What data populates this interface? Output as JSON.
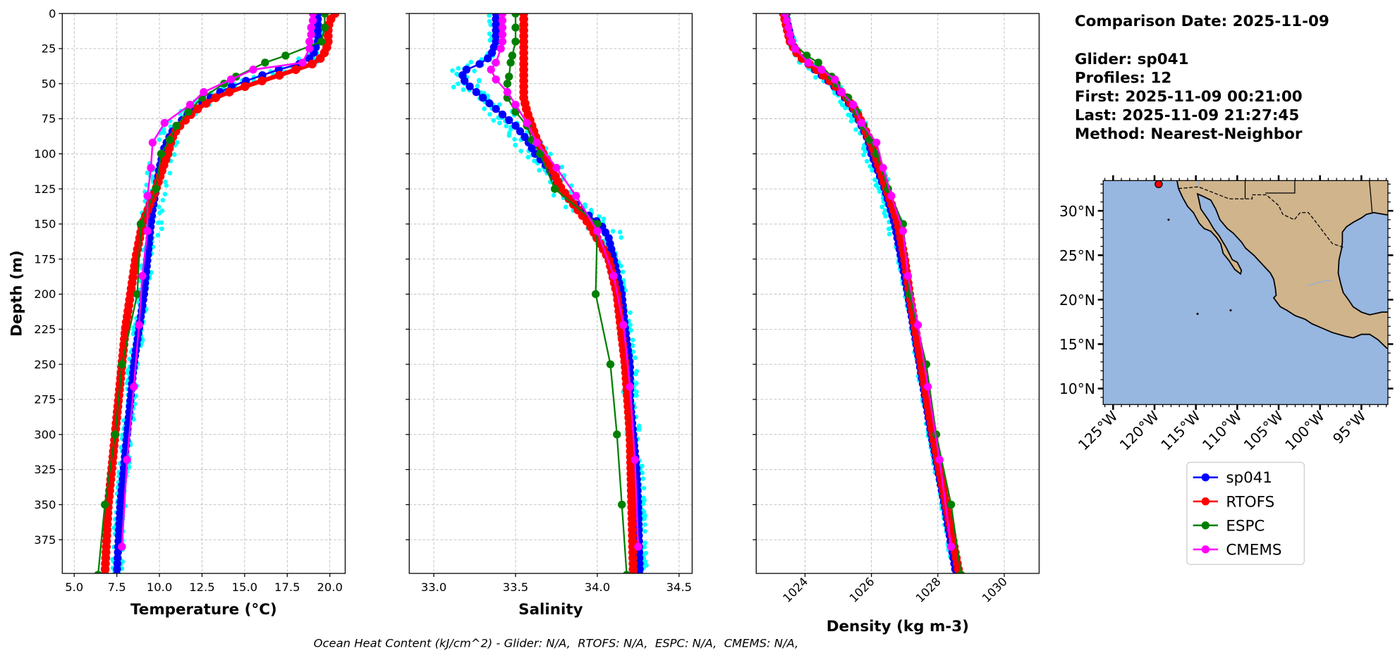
{
  "info": {
    "comparison_date": "Comparison Date: 2025-11-09",
    "glider": "Glider: sp041",
    "profiles": "Profiles: 12",
    "first": "First: 2025-11-09 00:21:00",
    "last": "Last: 2025-11-09 21:27:45",
    "method": "Method: Nearest-Neighbor"
  },
  "footer": "Ocean Heat Content (kJ/cm^2) - Glider: N/A,  RTOFS: N/A,  ESPC: N/A,  CMEMS: N/A,",
  "colors": {
    "sp041": "#0000ff",
    "RTOFS": "#ff0000",
    "ESPC": "#008000",
    "CMEMS": "#ff00ff",
    "profiles": "#00ffff",
    "land": "#d0b48c",
    "ocean": "#97b6e0"
  },
  "chart_data": [
    {
      "type": "line",
      "id": "temperature",
      "xlabel": "Temperature (°C)",
      "ylabel": "Depth (m)",
      "xlim": [
        4.3,
        20.9
      ],
      "ylim": [
        399,
        0
      ],
      "xticks": [
        "5.0",
        "7.5",
        "10.0",
        "12.5",
        "15.0",
        "17.5",
        "20.0"
      ],
      "yticks": [
        "0",
        "25",
        "50",
        "75",
        "100",
        "125",
        "150",
        "175",
        "200",
        "225",
        "250",
        "275",
        "300",
        "325",
        "350",
        "375"
      ],
      "grid": true,
      "profile_spread": 0.45,
      "series": [
        {
          "name": "sp041",
          "depth": [
            0,
            10,
            20,
            30,
            35,
            40,
            45,
            50,
            55,
            60,
            65,
            70,
            75,
            80,
            85,
            90,
            95,
            100,
            110,
            125,
            140,
            150,
            175,
            200,
            225,
            250,
            275,
            300,
            325,
            350,
            375,
            400
          ],
          "values": [
            19.3,
            19.3,
            19.3,
            19.0,
            18.5,
            17.0,
            15.8,
            14.6,
            13.7,
            13.0,
            12.4,
            11.8,
            11.4,
            11.0,
            10.7,
            10.5,
            10.3,
            10.2,
            10.0,
            9.8,
            9.6,
            9.5,
            9.3,
            9.1,
            8.8,
            8.5,
            8.3,
            8.1,
            7.9,
            7.7,
            7.6,
            7.5
          ]
        },
        {
          "name": "RTOFS",
          "depth": [
            0,
            5,
            10,
            15,
            20,
            25,
            30,
            35,
            40,
            45,
            50,
            55,
            60,
            65,
            70,
            75,
            80,
            85,
            90,
            100,
            110,
            125,
            150,
            175,
            200,
            225,
            250,
            275,
            300,
            325,
            350,
            375,
            400
          ],
          "values": [
            20.3,
            20.0,
            19.9,
            19.9,
            19.9,
            19.8,
            19.6,
            19.2,
            18.0,
            16.8,
            15.5,
            14.3,
            13.3,
            12.6,
            12.0,
            11.6,
            11.2,
            10.9,
            10.7,
            10.5,
            10.2,
            9.8,
            9.0,
            8.6,
            8.3,
            8.0,
            7.8,
            7.6,
            7.4,
            7.2,
            7.0,
            6.9,
            6.8
          ]
        },
        {
          "name": "ESPC",
          "depth": [
            0,
            10,
            20,
            30,
            35,
            45,
            50,
            60,
            70,
            80,
            90,
            100,
            125,
            150,
            200,
            250,
            300,
            350,
            400
          ],
          "values": [
            19.7,
            19.7,
            19.5,
            17.4,
            16.2,
            14.5,
            13.8,
            12.5,
            11.7,
            11.0,
            10.6,
            10.1,
            9.8,
            8.9,
            8.7,
            7.8,
            7.4,
            6.8,
            6.4
          ]
        },
        {
          "name": "CMEMS",
          "depth": [
            0,
            5,
            10,
            15,
            20,
            25,
            35,
            40,
            47,
            56,
            65,
            78,
            92,
            110,
            130,
            155,
            187,
            222,
            266,
            318,
            380
          ],
          "values": [
            19.0,
            19.0,
            18.9,
            18.9,
            18.8,
            18.8,
            18.4,
            15.5,
            14.2,
            12.6,
            11.8,
            10.3,
            9.6,
            9.5,
            9.3,
            9.3,
            9.0,
            8.8,
            8.5,
            8.1,
            7.8
          ]
        }
      ]
    },
    {
      "type": "line",
      "id": "salinity",
      "xlabel": "Salinity",
      "xlim": [
        32.85,
        34.58
      ],
      "ylim": [
        399,
        0
      ],
      "xticks": [
        "33.0",
        "33.5",
        "34.0",
        "34.5"
      ],
      "grid": true,
      "profile_spread": 0.06,
      "series": [
        {
          "name": "sp041",
          "depth": [
            0,
            20,
            30,
            35,
            40,
            45,
            50,
            55,
            60,
            65,
            70,
            75,
            80,
            90,
            100,
            110,
            125,
            140,
            150,
            160,
            175,
            200,
            225,
            250,
            275,
            300,
            325,
            350,
            400
          ],
          "values": [
            33.38,
            33.38,
            33.35,
            33.3,
            33.2,
            33.17,
            33.2,
            33.25,
            33.3,
            33.35,
            33.4,
            33.45,
            33.5,
            33.57,
            33.62,
            33.7,
            33.78,
            33.9,
            34.02,
            34.07,
            34.1,
            34.15,
            34.17,
            34.2,
            34.2,
            34.22,
            34.24,
            34.25,
            34.26
          ]
        },
        {
          "name": "RTOFS",
          "depth": [
            0,
            10,
            20,
            30,
            40,
            50,
            60,
            70,
            80,
            90,
            100,
            110,
            125,
            150,
            175,
            200,
            250,
            300,
            350,
            400
          ],
          "values": [
            33.55,
            33.55,
            33.55,
            33.55,
            33.55,
            33.55,
            33.55,
            33.57,
            33.6,
            33.63,
            33.67,
            33.72,
            33.78,
            33.95,
            34.07,
            34.12,
            34.17,
            34.2,
            34.21,
            34.22
          ]
        },
        {
          "name": "ESPC",
          "depth": [
            0,
            10,
            20,
            30,
            35,
            45,
            50,
            60,
            70,
            80,
            90,
            100,
            125,
            150,
            200,
            250,
            300,
            350,
            400
          ],
          "values": [
            33.5,
            33.5,
            33.5,
            33.48,
            33.47,
            33.46,
            33.45,
            33.45,
            33.5,
            33.57,
            33.6,
            33.65,
            33.74,
            34.0,
            33.99,
            34.08,
            34.12,
            34.15,
            34.18
          ]
        },
        {
          "name": "CMEMS",
          "depth": [
            0,
            5,
            10,
            15,
            20,
            25,
            35,
            40,
            47,
            56,
            65,
            78,
            92,
            110,
            130,
            155,
            187,
            222,
            266,
            318,
            380
          ],
          "values": [
            33.42,
            33.42,
            33.42,
            33.42,
            33.42,
            33.41,
            33.38,
            33.35,
            33.38,
            33.45,
            33.5,
            33.57,
            33.63,
            33.75,
            33.87,
            34.0,
            34.1,
            34.16,
            34.2,
            34.23,
            34.25
          ]
        }
      ]
    },
    {
      "type": "line",
      "id": "density",
      "xlabel": "Density (kg m-3)",
      "xlim": [
        1022.53,
        1031.05
      ],
      "ylim": [
        399,
        0
      ],
      "xticks": [
        "1024",
        "1026",
        "1028",
        "1030"
      ],
      "grid": true,
      "profile_spread": 0.15,
      "series": [
        {
          "name": "sp041",
          "depth": [
            0,
            20,
            30,
            40,
            50,
            60,
            70,
            80,
            90,
            100,
            125,
            150,
            175,
            200,
            250,
            300,
            350,
            400
          ],
          "values": [
            1023.4,
            1023.6,
            1023.8,
            1024.3,
            1024.8,
            1025.2,
            1025.5,
            1025.7,
            1025.9,
            1026.0,
            1026.4,
            1026.7,
            1026.9,
            1027.1,
            1027.45,
            1027.8,
            1028.2,
            1028.55
          ]
        },
        {
          "name": "RTOFS",
          "depth": [
            0,
            20,
            30,
            40,
            50,
            60,
            70,
            80,
            90,
            100,
            125,
            150,
            175,
            200,
            250,
            300,
            350,
            400
          ],
          "values": [
            1023.35,
            1023.55,
            1023.8,
            1024.35,
            1024.85,
            1025.25,
            1025.55,
            1025.75,
            1025.95,
            1026.1,
            1026.45,
            1026.8,
            1027.0,
            1027.15,
            1027.5,
            1027.85,
            1028.25,
            1028.65
          ]
        },
        {
          "name": "ESPC",
          "depth": [
            0,
            10,
            20,
            30,
            35,
            45,
            50,
            60,
            70,
            80,
            90,
            100,
            125,
            150,
            200,
            250,
            300,
            350,
            400
          ],
          "values": [
            1023.45,
            1023.5,
            1023.6,
            1024.05,
            1024.4,
            1024.8,
            1024.95,
            1025.3,
            1025.55,
            1025.75,
            1025.95,
            1026.15,
            1026.5,
            1026.95,
            1027.15,
            1027.65,
            1027.95,
            1028.4,
            1028.7
          ]
        },
        {
          "name": "CMEMS",
          "depth": [
            0,
            5,
            10,
            15,
            20,
            25,
            35,
            40,
            47,
            56,
            65,
            78,
            92,
            110,
            130,
            155,
            187,
            222,
            266,
            318,
            380
          ],
          "values": [
            1023.4,
            1023.45,
            1023.5,
            1023.55,
            1023.6,
            1023.7,
            1024.1,
            1024.5,
            1024.9,
            1025.1,
            1025.45,
            1025.7,
            1026.15,
            1026.35,
            1026.6,
            1026.95,
            1027.1,
            1027.4,
            1027.7,
            1028.05,
            1028.4
          ]
        }
      ]
    }
  ],
  "map": {
    "lon_range": [
      -126.2,
      -91.8
    ],
    "lat_range": [
      8.2,
      33.4
    ],
    "lon_ticks": [
      {
        "lon": -125,
        "label": "125°W"
      },
      {
        "lon": -120,
        "label": "120°W"
      },
      {
        "lon": -115,
        "label": "115°W"
      },
      {
        "lon": -110,
        "label": "110°W"
      },
      {
        "lon": -105,
        "label": "105°W"
      },
      {
        "lon": -100,
        "label": "100°W"
      },
      {
        "lon": -95,
        "label": "95°W"
      }
    ],
    "lat_ticks": [
      {
        "lat": 30,
        "label": "30°N"
      },
      {
        "lat": 25,
        "label": "25°N"
      },
      {
        "lat": 20,
        "label": "20°N"
      },
      {
        "lat": 15,
        "label": "15°N"
      },
      {
        "lat": 10,
        "label": "10°N"
      }
    ],
    "glider_position": {
      "lon": -119.5,
      "lat": 33.0
    }
  },
  "legend": [
    {
      "name": "sp041",
      "label": "sp041"
    },
    {
      "name": "RTOFS",
      "label": "RTOFS"
    },
    {
      "name": "ESPC",
      "label": "ESPC"
    },
    {
      "name": "CMEMS",
      "label": "CMEMS"
    }
  ]
}
